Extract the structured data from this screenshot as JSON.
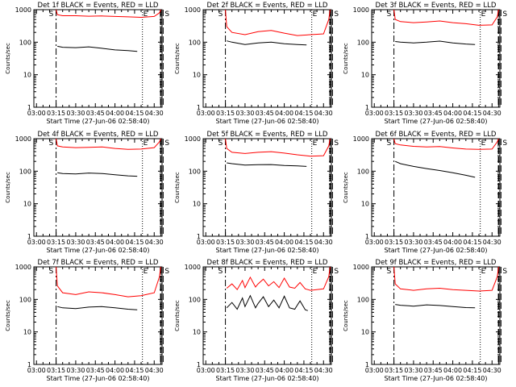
{
  "chart_data": [
    {
      "id": "p1",
      "type": "line",
      "title": "Det 1f BLACK = Events, RED = LLD",
      "xlabel": "Start Time (27-Jun-06 02:58:40)",
      "ylabel": "Counts/sec",
      "yscale": "log",
      "ylim": [
        1,
        1000
      ],
      "x_ticks": [
        "03:00",
        "03:15",
        "03:30",
        "03:45",
        "04:00",
        "04:15",
        "04:30"
      ],
      "y_ticks": [
        "1",
        "10",
        "100",
        "1000"
      ],
      "markers": [
        {
          "label": "S",
          "t": "03:15"
        },
        {
          "label": "E",
          "t": "04:21"
        },
        {
          "label": "S",
          "t": "04:35"
        }
      ],
      "series": [
        {
          "color": "#ff0000",
          "x": [
            "03:15",
            "03:16",
            "03:20",
            "03:30",
            "03:40",
            "03:50",
            "04:00",
            "04:10",
            "04:20",
            "04:30",
            "04:34",
            "04:35"
          ],
          "y": [
            1000,
            700,
            650,
            650,
            630,
            640,
            620,
            600,
            580,
            620,
            800,
            1000
          ]
        },
        {
          "color": "#000000",
          "x": [
            "03:16",
            "03:20",
            "03:30",
            "03:40",
            "03:50",
            "04:00",
            "04:10",
            "04:17"
          ],
          "y": [
            75,
            70,
            68,
            72,
            65,
            58,
            55,
            52
          ]
        }
      ]
    },
    {
      "id": "p2",
      "type": "line",
      "title": "Det 2f BLACK = Events, RED = LLD",
      "xlabel": "Start Time (27-Jun-06 02:58:40)",
      "ylabel": "Counts/sec",
      "yscale": "log",
      "ylim": [
        1,
        1000
      ],
      "x_ticks": [
        "03:00",
        "03:15",
        "03:30",
        "03:45",
        "04:00",
        "04:15",
        "04:30"
      ],
      "y_ticks": [
        "1",
        "10",
        "100",
        "1000"
      ],
      "markers": [
        {
          "label": "S",
          "t": "03:15"
        },
        {
          "label": "E",
          "t": "04:21"
        },
        {
          "label": "S",
          "t": "04:35"
        }
      ],
      "series": [
        {
          "color": "#ff0000",
          "x": [
            "03:15",
            "03:16",
            "03:20",
            "03:30",
            "03:40",
            "03:50",
            "04:00",
            "04:10",
            "04:20",
            "04:30",
            "04:34",
            "04:35"
          ],
          "y": [
            1000,
            300,
            200,
            170,
            210,
            230,
            190,
            160,
            170,
            180,
            500,
            1000
          ]
        },
        {
          "color": "#000000",
          "x": [
            "03:16",
            "03:20",
            "03:30",
            "03:40",
            "03:50",
            "04:00",
            "04:10",
            "04:17"
          ],
          "y": [
            110,
            100,
            85,
            95,
            100,
            90,
            85,
            82
          ]
        }
      ]
    },
    {
      "id": "p3",
      "type": "line",
      "title": "Det 3f BLACK = Events, RED = LLD",
      "xlabel": "Start Time (27-Jun-06 02:58:40)",
      "ylabel": "Counts/sec",
      "yscale": "log",
      "ylim": [
        1,
        1000
      ],
      "x_ticks": [
        "03:00",
        "03:15",
        "03:30",
        "03:45",
        "04:00",
        "04:15",
        "04:30"
      ],
      "y_ticks": [
        "1",
        "10",
        "100",
        "1000"
      ],
      "markers": [
        {
          "label": "S",
          "t": "03:15"
        },
        {
          "label": "E",
          "t": "04:21"
        },
        {
          "label": "S",
          "t": "04:35"
        }
      ],
      "series": [
        {
          "color": "#ff0000",
          "x": [
            "03:15",
            "03:16",
            "03:20",
            "03:30",
            "03:40",
            "03:50",
            "04:00",
            "04:10",
            "04:20",
            "04:30",
            "04:34",
            "04:35"
          ],
          "y": [
            1000,
            500,
            430,
            400,
            420,
            450,
            400,
            370,
            330,
            340,
            600,
            1000
          ]
        },
        {
          "color": "#000000",
          "x": [
            "03:16",
            "03:20",
            "03:30",
            "03:40",
            "03:50",
            "04:00",
            "04:10",
            "04:17"
          ],
          "y": [
            105,
            100,
            95,
            100,
            108,
            95,
            88,
            85
          ]
        }
      ]
    },
    {
      "id": "p4",
      "type": "line",
      "title": "Det 4f BLACK = Events, RED = LLD",
      "xlabel": "Start Time (27-Jun-06 02:58:40)",
      "ylabel": "Counts/sec",
      "yscale": "log",
      "ylim": [
        1,
        1000
      ],
      "x_ticks": [
        "03:00",
        "03:15",
        "03:30",
        "03:45",
        "04:00",
        "04:15",
        "04:30"
      ],
      "y_ticks": [
        "1",
        "10",
        "100",
        "1000"
      ],
      "markers": [
        {
          "label": "S",
          "t": "03:15"
        },
        {
          "label": "E",
          "t": "04:21"
        },
        {
          "label": "S",
          "t": "04:35"
        }
      ],
      "series": [
        {
          "color": "#ff0000",
          "x": [
            "03:15",
            "03:16",
            "03:20",
            "03:30",
            "03:40",
            "03:50",
            "04:00",
            "04:10",
            "04:20",
            "04:30",
            "04:34",
            "04:35"
          ],
          "y": [
            1000,
            600,
            560,
            530,
            540,
            560,
            500,
            470,
            480,
            530,
            800,
            1000
          ]
        },
        {
          "color": "#000000",
          "x": [
            "03:16",
            "03:20",
            "03:30",
            "03:40",
            "03:50",
            "04:00",
            "04:10",
            "04:17"
          ],
          "y": [
            90,
            85,
            82,
            88,
            85,
            78,
            72,
            70
          ]
        }
      ]
    },
    {
      "id": "p5",
      "type": "line",
      "title": "Det 5f BLACK = Events, RED = LLD",
      "xlabel": "Start Time (27-Jun-06 02:58:40)",
      "ylabel": "Counts/sec",
      "yscale": "log",
      "ylim": [
        1,
        1000
      ],
      "x_ticks": [
        "03:00",
        "03:15",
        "03:30",
        "03:45",
        "04:00",
        "04:15",
        "04:30"
      ],
      "y_ticks": [
        "1",
        "10",
        "100",
        "1000"
      ],
      "markers": [
        {
          "label": "S",
          "t": "03:15"
        },
        {
          "label": "E",
          "t": "04:21"
        },
        {
          "label": "S",
          "t": "04:35"
        }
      ],
      "series": [
        {
          "color": "#ff0000",
          "x": [
            "03:15",
            "03:16",
            "03:20",
            "03:30",
            "03:40",
            "03:50",
            "04:00",
            "04:10",
            "04:20",
            "04:30",
            "04:34",
            "04:35"
          ],
          "y": [
            1000,
            500,
            380,
            350,
            380,
            400,
            360,
            320,
            290,
            300,
            600,
            1000
          ]
        },
        {
          "color": "#000000",
          "x": [
            "03:16",
            "03:20",
            "03:30",
            "03:40",
            "03:50",
            "04:00",
            "04:10",
            "04:17"
          ],
          "y": [
            180,
            170,
            155,
            158,
            160,
            150,
            145,
            140
          ]
        }
      ]
    },
    {
      "id": "p6",
      "type": "line",
      "title": "Det 6f BLACK = Events, RED = LLD",
      "xlabel": "Start Time (27-Jun-06 02:58:40)",
      "ylabel": "Counts/sec",
      "yscale": "log",
      "ylim": [
        1,
        1000
      ],
      "x_ticks": [
        "03:00",
        "03:15",
        "03:30",
        "03:45",
        "04:00",
        "04:15",
        "04:30"
      ],
      "y_ticks": [
        "1",
        "10",
        "100",
        "1000"
      ],
      "markers": [
        {
          "label": "S",
          "t": "03:15"
        },
        {
          "label": "E",
          "t": "04:21"
        },
        {
          "label": "S",
          "t": "04:35"
        }
      ],
      "series": [
        {
          "color": "#ff0000",
          "x": [
            "03:15",
            "03:16",
            "03:20",
            "03:30",
            "03:40",
            "03:50",
            "04:00",
            "04:10",
            "04:20",
            "04:30",
            "04:34",
            "04:35"
          ],
          "y": [
            1000,
            700,
            640,
            580,
            560,
            570,
            520,
            480,
            470,
            480,
            800,
            1000
          ]
        },
        {
          "color": "#000000",
          "x": [
            "03:16",
            "03:20",
            "03:30",
            "03:40",
            "03:50",
            "04:00",
            "04:10",
            "04:17"
          ],
          "y": [
            200,
            170,
            140,
            120,
            105,
            90,
            75,
            65
          ]
        }
      ]
    },
    {
      "id": "p7",
      "type": "line",
      "title": "Det 7f BLACK = Events, RED = LLD",
      "xlabel": "Start Time (27-Jun-06 02:58:40)",
      "ylabel": "Counts/sec",
      "yscale": "log",
      "ylim": [
        1,
        1000
      ],
      "x_ticks": [
        "03:00",
        "03:15",
        "03:30",
        "03:45",
        "04:00",
        "04:15",
        "04:30"
      ],
      "y_ticks": [
        "1",
        "10",
        "100",
        "1000"
      ],
      "markers": [
        {
          "label": "S",
          "t": "03:15"
        },
        {
          "label": "E",
          "t": "04:21"
        },
        {
          "label": "S",
          "t": "04:35"
        }
      ],
      "series": [
        {
          "color": "#ff0000",
          "x": [
            "03:15",
            "03:16",
            "03:20",
            "03:30",
            "03:40",
            "03:50",
            "04:00",
            "04:10",
            "04:20",
            "04:30",
            "04:34",
            "04:35"
          ],
          "y": [
            1000,
            260,
            160,
            140,
            170,
            160,
            140,
            120,
            130,
            160,
            500,
            1000
          ]
        },
        {
          "color": "#000000",
          "x": [
            "03:16",
            "03:20",
            "03:30",
            "03:40",
            "03:50",
            "04:00",
            "04:10",
            "04:17"
          ],
          "y": [
            60,
            55,
            52,
            58,
            60,
            55,
            50,
            48
          ]
        }
      ]
    },
    {
      "id": "p8",
      "type": "line",
      "title": "Det 8f BLACK = Events, RED = LLD",
      "xlabel": "Start Time (27-Jun-06 02:58:40)",
      "ylabel": "Counts/sec",
      "yscale": "log",
      "ylim": [
        1,
        1000
      ],
      "x_ticks": [
        "03:00",
        "03:15",
        "03:30",
        "03:45",
        "04:00",
        "04:15",
        "04:30"
      ],
      "y_ticks": [
        "1",
        "10",
        "100",
        "1000"
      ],
      "markers": [
        {
          "label": "S",
          "t": "03:15"
        },
        {
          "label": "E",
          "t": "04:21"
        },
        {
          "label": "S",
          "t": "04:35"
        }
      ],
      "series": [
        {
          "color": "#ff0000",
          "x": [
            "03:16",
            "03:20",
            "03:24",
            "03:28",
            "03:30",
            "03:34",
            "03:38",
            "03:40",
            "03:44",
            "03:48",
            "03:52",
            "03:56",
            "04:00",
            "04:04",
            "04:08",
            "04:12",
            "04:16",
            "04:18",
            "04:20",
            "04:30",
            "04:34",
            "04:35"
          ],
          "y": [
            220,
            300,
            200,
            380,
            230,
            480,
            240,
            300,
            420,
            260,
            350,
            230,
            450,
            240,
            220,
            330,
            210,
            200,
            190,
            210,
            500,
            1000
          ]
        },
        {
          "color": "#000000",
          "x": [
            "03:16",
            "03:20",
            "03:24",
            "03:28",
            "03:30",
            "03:34",
            "03:38",
            "03:40",
            "03:44",
            "03:48",
            "03:52",
            "03:56",
            "04:00",
            "04:04",
            "04:08",
            "04:12",
            "04:16",
            "04:18"
          ],
          "y": [
            55,
            80,
            50,
            110,
            60,
            130,
            55,
            75,
            120,
            60,
            95,
            55,
            125,
            55,
            50,
            90,
            48,
            45
          ]
        }
      ]
    },
    {
      "id": "p9",
      "type": "line",
      "title": "Det 9f BLACK = Events, RED = LLD",
      "xlabel": "Start Time (27-Jun-06 02:58:40)",
      "ylabel": "Counts/sec",
      "yscale": "log",
      "ylim": [
        1,
        1000
      ],
      "x_ticks": [
        "03:00",
        "03:15",
        "03:30",
        "03:45",
        "04:00",
        "04:15",
        "04:30"
      ],
      "y_ticks": [
        "1",
        "10",
        "100",
        "1000"
      ],
      "markers": [
        {
          "label": "S",
          "t": "03:15"
        },
        {
          "label": "E",
          "t": "04:21"
        },
        {
          "label": "S",
          "t": "04:35"
        }
      ],
      "series": [
        {
          "color": "#ff0000",
          "x": [
            "03:15",
            "03:16",
            "03:20",
            "03:30",
            "03:40",
            "03:50",
            "04:00",
            "04:10",
            "04:20",
            "04:30",
            "04:34",
            "04:35"
          ],
          "y": [
            1000,
            300,
            210,
            190,
            210,
            220,
            200,
            190,
            180,
            190,
            500,
            1000
          ]
        },
        {
          "color": "#000000",
          "x": [
            "03:16",
            "03:20",
            "03:30",
            "03:40",
            "03:50",
            "04:00",
            "04:10",
            "04:17"
          ],
          "y": [
            70,
            66,
            62,
            68,
            65,
            60,
            56,
            55
          ]
        }
      ]
    }
  ]
}
